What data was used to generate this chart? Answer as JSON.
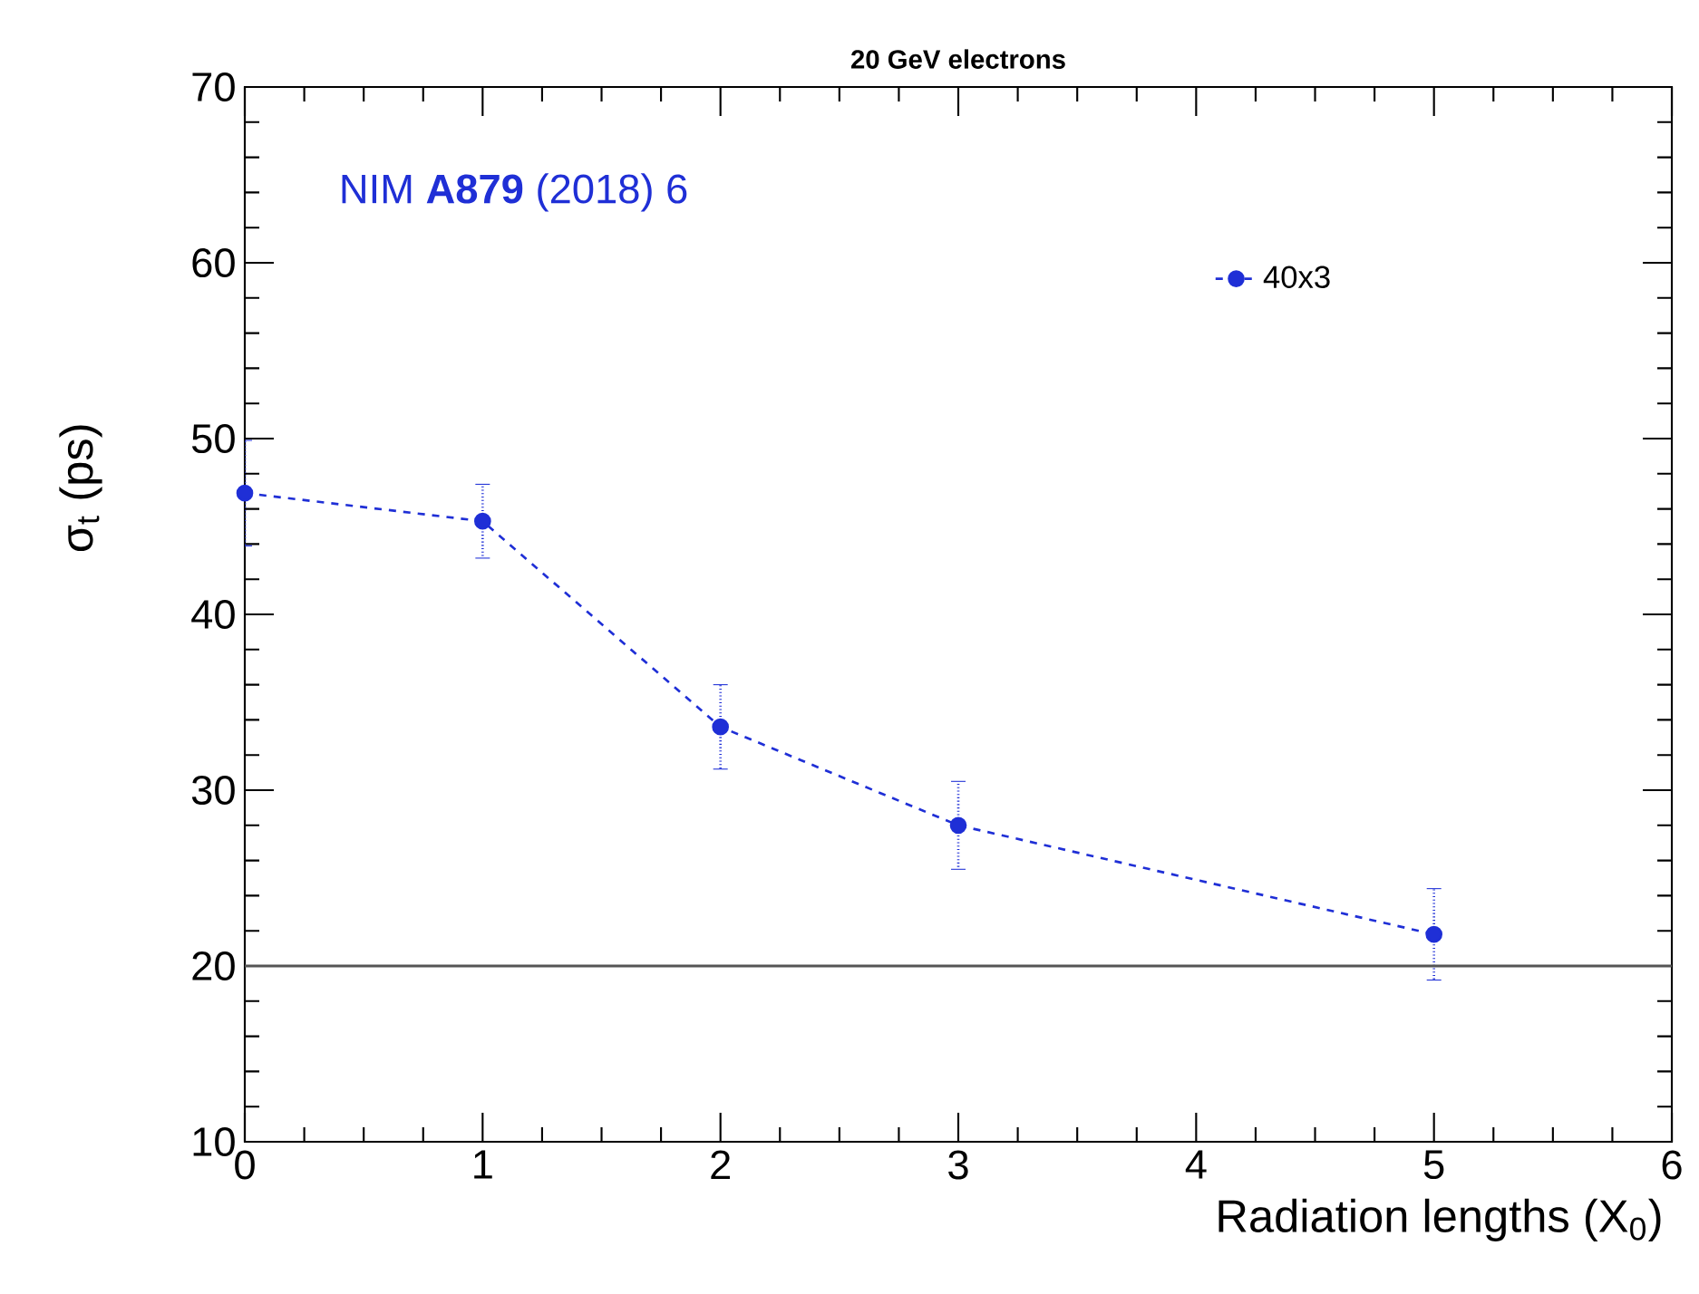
{
  "chart_data": {
    "type": "line",
    "title": "20 GeV electrons",
    "xlabel": "Radiation lengths (X$_{0}$)",
    "ylabel": "σ$_{t}$ (ps)",
    "x": [
      0,
      1,
      2,
      3,
      5
    ],
    "series": [
      {
        "name": "40x3",
        "color": "#1f2fd6",
        "values": [
          46.9,
          45.3,
          33.6,
          28.0,
          21.8
        ],
        "errors": [
          3.0,
          2.1,
          2.4,
          2.5,
          2.6
        ]
      }
    ],
    "xlim": [
      0,
      6
    ],
    "ylim": [
      10,
      70
    ],
    "xticks": [
      0,
      1,
      2,
      3,
      4,
      5,
      6
    ],
    "yticks": [
      10,
      20,
      30,
      40,
      50,
      60,
      70
    ],
    "ref_lines": [
      {
        "axis": "y",
        "value": 20,
        "color": "#555555"
      }
    ],
    "annotations": [
      "NIM **A879** (2018) 6"
    ],
    "legend": "top right",
    "marker": "circle",
    "line_style": "dashed",
    "grid": false
  }
}
